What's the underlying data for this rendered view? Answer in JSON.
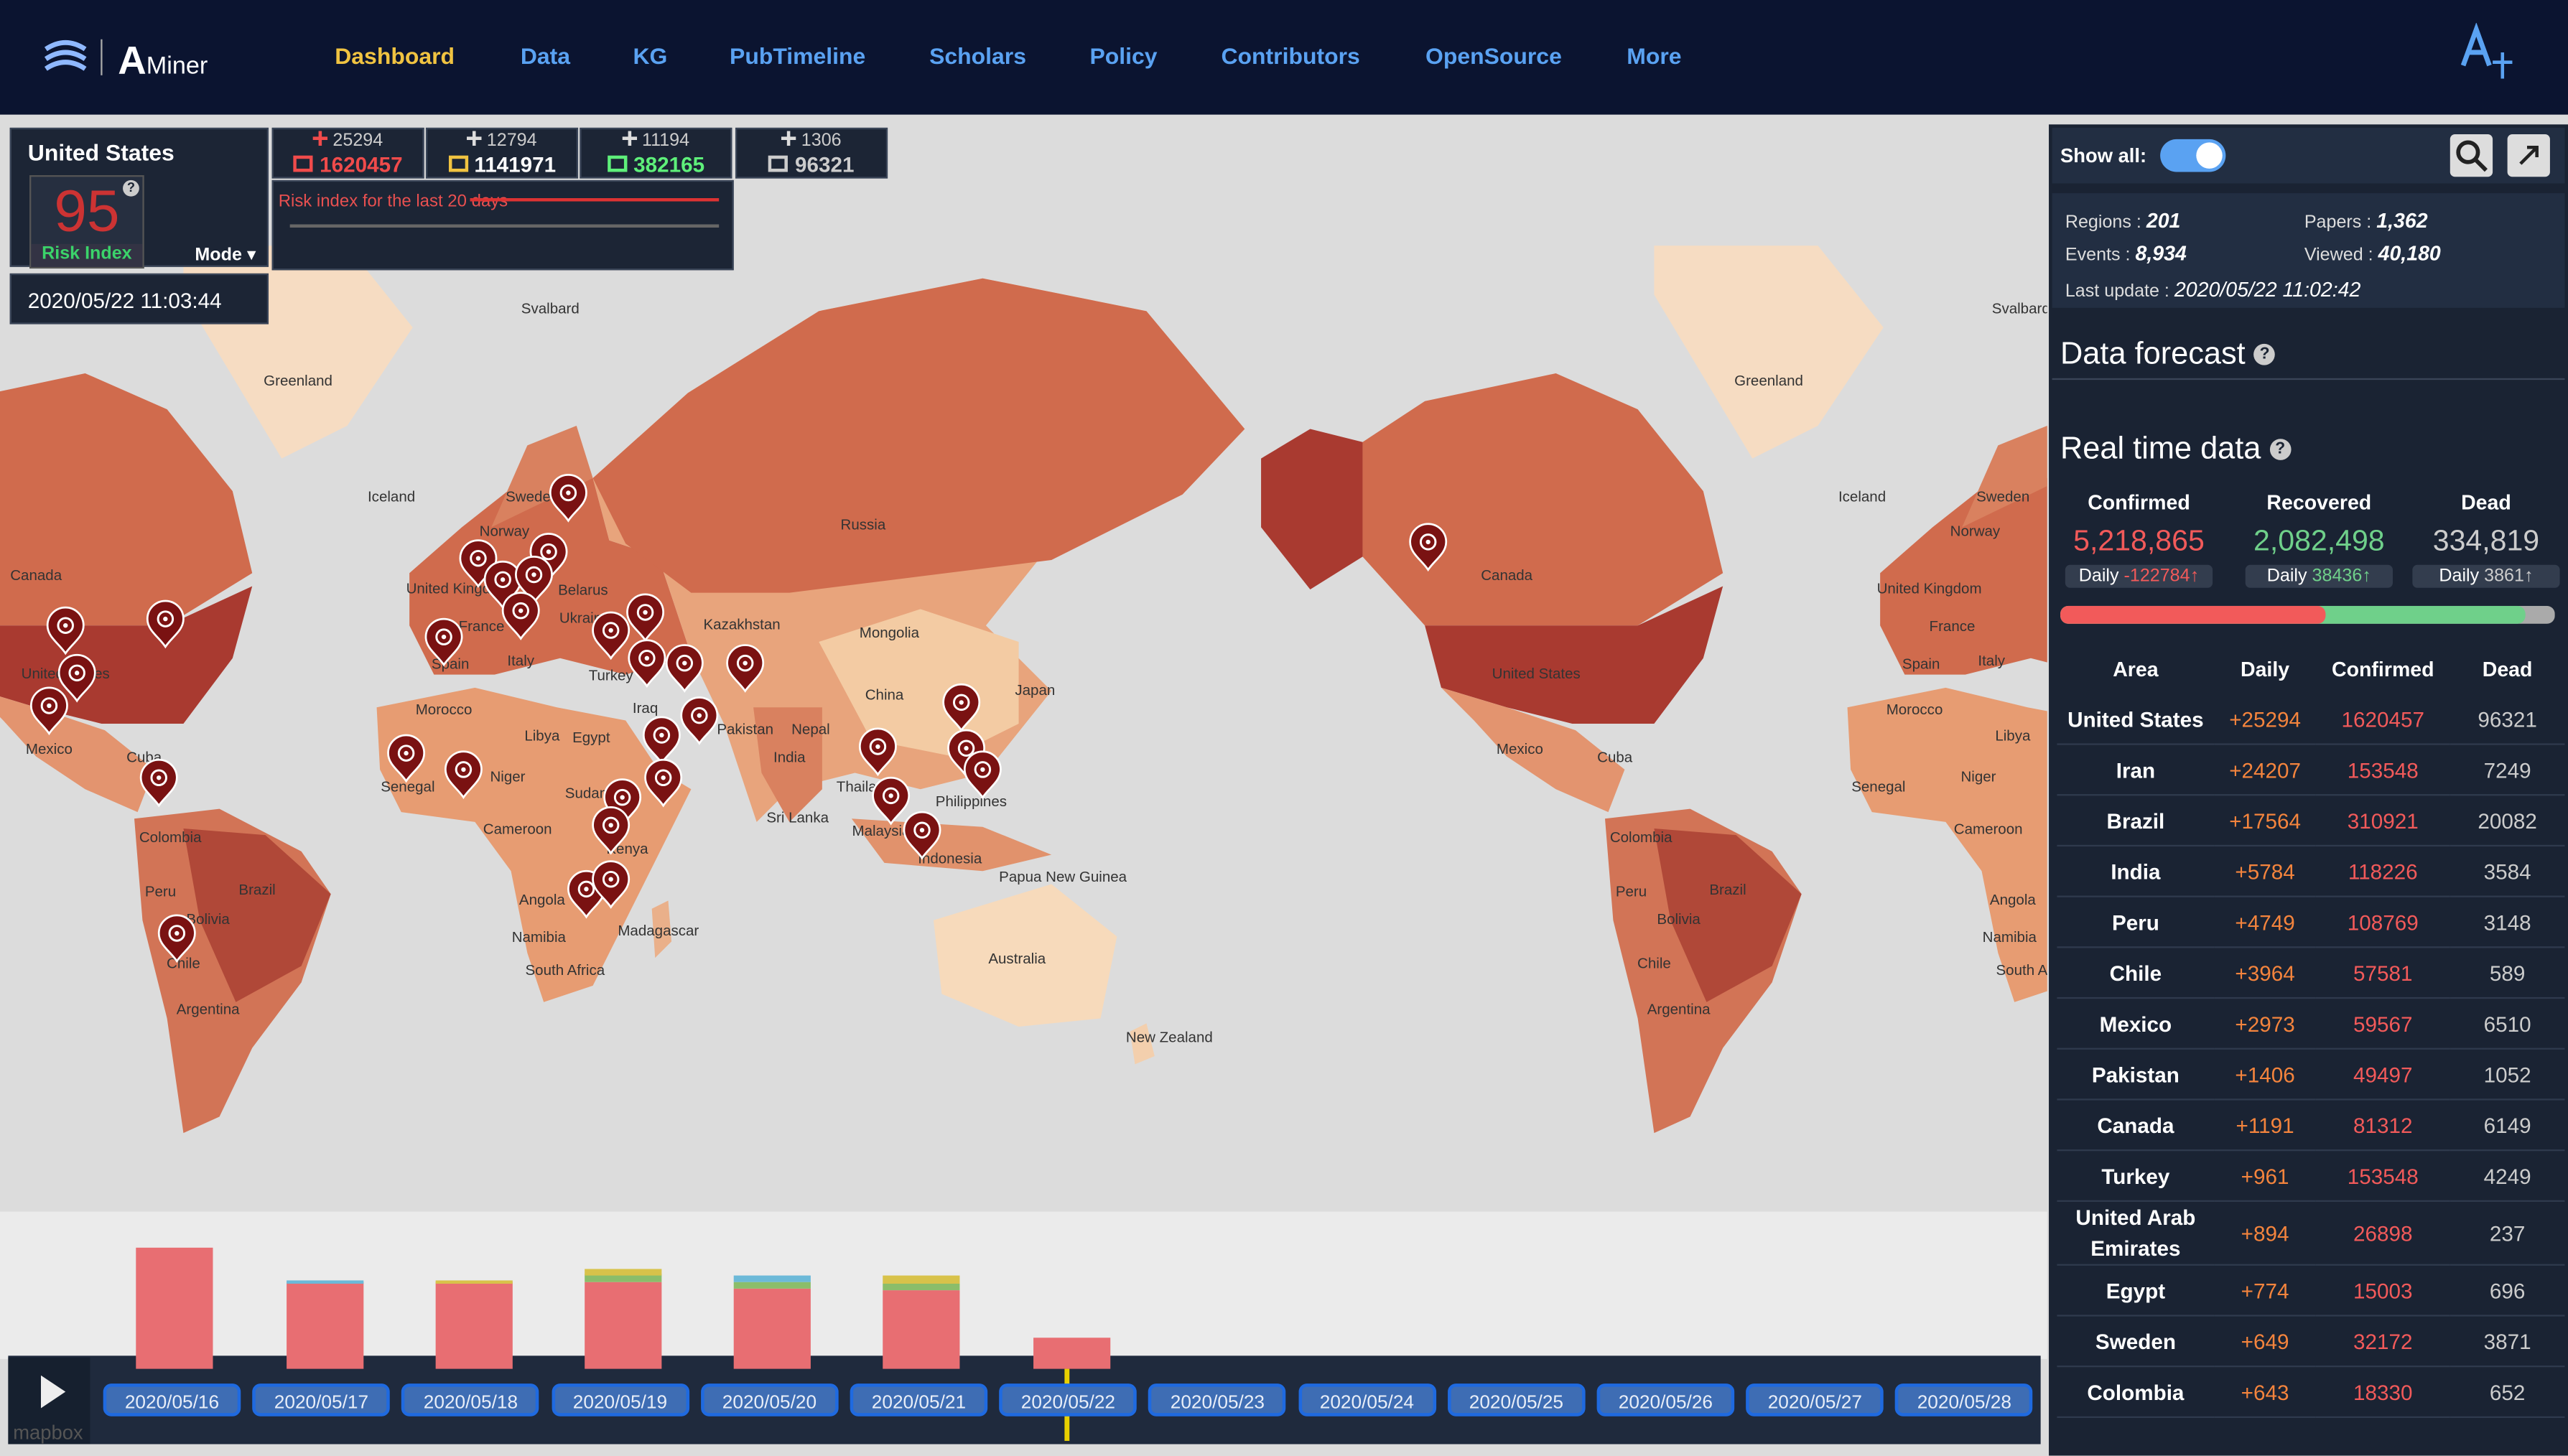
{
  "nav": {
    "logo": "AMiner",
    "items": [
      "Dashboard",
      "Data",
      "KG",
      "PubTimeline",
      "Scholars",
      "Policy",
      "Contributors",
      "OpenSource",
      "More"
    ]
  },
  "help": "?",
  "country_panel": {
    "name": "United States",
    "risk_value": "95",
    "risk_label": "Risk Index",
    "mode": "Mode ▾",
    "datetime": "2020/05/22 11:03:44"
  },
  "stats": [
    {
      "delta": "25294",
      "total": "1620457"
    },
    {
      "delta": "12794",
      "total": "1141971"
    },
    {
      "delta": "11194",
      "total": "382165"
    },
    {
      "delta": "1306",
      "total": "96321"
    }
  ],
  "risk_chart_label": "Risk index for the last 20 days",
  "side": {
    "show_all": "Show all:",
    "summary": [
      {
        "label": "Regions :",
        "value": "201"
      },
      {
        "label": "Papers :",
        "value": "1,362"
      },
      {
        "label": "Events :",
        "value": "8,934"
      },
      {
        "label": "Viewed :",
        "value": "40,180"
      }
    ],
    "last_update_label": "Last update :",
    "last_update": "2020/05/22 11:02:42",
    "forecast_title": "Data forecast",
    "realtime_title": "Real time data",
    "totals": [
      {
        "label": "Confirmed",
        "value": "5,218,865",
        "daily_label": "Daily",
        "daily": "-122784↑"
      },
      {
        "label": "Recovered",
        "value": "2,082,498",
        "daily_label": "Daily",
        "daily": "38436↑"
      },
      {
        "label": "Dead",
        "value": "334,819",
        "daily_label": "Daily",
        "daily": "3861↑"
      }
    ]
  },
  "table": {
    "headers": [
      "Area",
      "Daily",
      "Confirmed",
      "Dead"
    ],
    "rows": [
      [
        "United States",
        "+25294",
        "1620457",
        "96321"
      ],
      [
        "Iran",
        "+24207",
        "153548",
        "7249"
      ],
      [
        "Brazil",
        "+17564",
        "310921",
        "20082"
      ],
      [
        "India",
        "+5784",
        "118226",
        "3584"
      ],
      [
        "Peru",
        "+4749",
        "108769",
        "3148"
      ],
      [
        "Chile",
        "+3964",
        "57581",
        "589"
      ],
      [
        "Mexico",
        "+2973",
        "59567",
        "6510"
      ],
      [
        "Pakistan",
        "+1406",
        "49497",
        "1052"
      ],
      [
        "Canada",
        "+1191",
        "81312",
        "6149"
      ],
      [
        "Turkey",
        "+961",
        "153548",
        "4249"
      ],
      [
        "United Arab Emirates",
        "+894",
        "26898",
        "237"
      ],
      [
        "Egypt",
        "+774",
        "15003",
        "696"
      ],
      [
        "Sweden",
        "+649",
        "32172",
        "3871"
      ],
      [
        "Colombia",
        "+643",
        "18330",
        "652"
      ]
    ]
  },
  "timeline": {
    "dates": [
      "2020/05/16",
      "2020/05/17",
      "2020/05/18",
      "2020/05/19",
      "2020/05/20",
      "2020/05/21",
      "2020/05/22",
      "2020/05/23",
      "2020/05/24",
      "2020/05/25",
      "2020/05/26",
      "2020/05/27",
      "2020/05/28"
    ]
  },
  "map_labels": [
    "Greenland",
    "Svalbard",
    "Iceland",
    "Sweden",
    "Norway",
    "Russia",
    "Canada",
    "United Kingdom",
    "Belarus",
    "France",
    "Ukraine",
    "Kazakhstan",
    "Mongolia",
    "Spain",
    "Italy",
    "Turkey",
    "China",
    "Japan",
    "Morocco",
    "Iraq",
    "Libya",
    "Egypt",
    "Pakistan",
    "Nepal",
    "India",
    "Senegal",
    "Niger",
    "Sudan",
    "Thailand",
    "Philippines",
    "Sri Lanka",
    "Malaysia",
    "Indonesia",
    "Cameroon",
    "Kenya",
    "Papua New Guinea",
    "Angola",
    "Madagascar",
    "Namibia",
    "South Africa",
    "Australia",
    "New Zealand",
    "United States",
    "Mexico",
    "Cuba",
    "Colombia",
    "Peru",
    "Bolivia",
    "Brazil",
    "Chile",
    "Argentina"
  ],
  "attribution": "mapbox"
}
